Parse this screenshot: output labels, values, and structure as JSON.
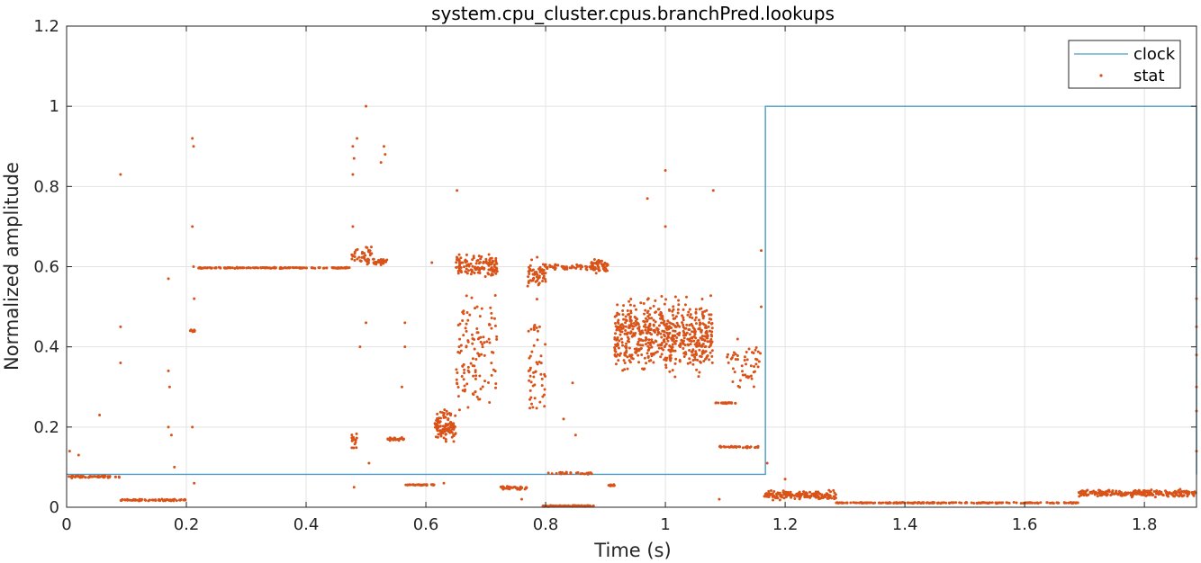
{
  "chart_data": {
    "type": "scatter",
    "title": "system.cpu_cluster.cpus.branchPred.lookups",
    "xlabel": "Time (s)",
    "ylabel": "Normalized amplitude",
    "xlim": [
      0,
      1.887
    ],
    "ylim": [
      0,
      1.2
    ],
    "grid": true,
    "legend_position": "top-right",
    "x_ticks": [
      0,
      0.2,
      0.4,
      0.6,
      0.8,
      1,
      1.2,
      1.4,
      1.6,
      1.8
    ],
    "x_tick_labels": [
      "0",
      "0.2",
      "0.4",
      "0.6",
      "0.8",
      "1",
      "1.2",
      "1.4",
      "1.6",
      "1.8"
    ],
    "y_ticks": [
      0,
      0.2,
      0.4,
      0.6,
      0.8,
      1,
      1.2
    ],
    "y_tick_labels": [
      "0",
      "0.2",
      "0.4",
      "0.6",
      "0.8",
      "1",
      "1.2"
    ],
    "colors": {
      "clock": "#4a9cc4",
      "stat": "#d95319",
      "grid": "#e3e3e3",
      "axis": "#262626"
    },
    "series": [
      {
        "name": "clock",
        "kind": "line",
        "x": [
          0,
          1.167,
          1.167,
          1.887,
          1.887
        ],
        "y": [
          0.082,
          0.082,
          1.0,
          1.0,
          0.082
        ]
      },
      {
        "name": "stat",
        "kind": "scatter",
        "segments": [
          {
            "x": [
              0.0,
              0.09
            ],
            "y": 0.076,
            "spread": 0.004,
            "n": 60
          },
          {
            "x": [
              0.09,
              0.2
            ],
            "y": 0.018,
            "spread": 0.003,
            "n": 70
          },
          {
            "x": [
              0.205,
              0.215
            ],
            "y": 0.44,
            "spread": 0.004,
            "n": 8
          },
          {
            "x": [
              0.22,
              0.475
            ],
            "y": 0.597,
            "spread": 0.002,
            "n": 150
          },
          {
            "x": [
              0.475,
              0.51
            ],
            "y": 0.63,
            "spread": 0.03,
            "n": 40
          },
          {
            "x": [
              0.5,
              0.535
            ],
            "y": 0.612,
            "spread": 0.01,
            "n": 40
          },
          {
            "x": [
              0.475,
              0.485
            ],
            "y": 0.17,
            "spread": 0.03,
            "n": 20
          },
          {
            "x": [
              0.535,
              0.565
            ],
            "y": 0.17,
            "spread": 0.005,
            "n": 25
          },
          {
            "x": [
              0.565,
              0.615
            ],
            "y": 0.056,
            "spread": 0.002,
            "n": 35
          },
          {
            "x": [
              0.615,
              0.65
            ],
            "y": 0.2,
            "spread": 0.05,
            "n": 110
          },
          {
            "x": [
              0.65,
              0.72
            ],
            "y": 0.6,
            "spread": 0.04,
            "n": 130
          },
          {
            "x": [
              0.65,
              0.72
            ],
            "y": 0.38,
            "spread": 0.22,
            "n": 120
          },
          {
            "x": [
              0.725,
              0.77
            ],
            "y": 0.048,
            "spread": 0.006,
            "n": 45
          },
          {
            "x": [
              0.77,
              0.8
            ],
            "y": 0.58,
            "spread": 0.05,
            "n": 60
          },
          {
            "x": [
              0.77,
              0.8
            ],
            "y": 0.35,
            "spread": 0.2,
            "n": 50
          },
          {
            "x": [
              0.795,
              0.88
            ],
            "y": 0.003,
            "spread": 0.002,
            "n": 90
          },
          {
            "x": [
              0.8,
              0.88
            ],
            "y": 0.6,
            "spread": 0.012,
            "n": 55
          },
          {
            "x": [
              0.8,
              0.88
            ],
            "y": 0.085,
            "spread": 0.004,
            "n": 25
          },
          {
            "x": [
              0.875,
              0.905
            ],
            "y": 0.6,
            "spread": 0.025,
            "n": 60
          },
          {
            "x": [
              0.905,
              0.915
            ],
            "y": 0.055,
            "spread": 0.004,
            "n": 12
          },
          {
            "x": [
              0.915,
              1.08
            ],
            "y": 0.43,
            "spread": 0.12,
            "n": 620
          },
          {
            "x": [
              1.08,
              1.12
            ],
            "y": 0.26,
            "spread": 0.003,
            "n": 25
          },
          {
            "x": [
              1.09,
              1.155
            ],
            "y": 0.15,
            "spread": 0.003,
            "n": 35
          },
          {
            "x": [
              1.1,
              1.16
            ],
            "y": 0.35,
            "spread": 0.08,
            "n": 50
          },
          {
            "x": [
              1.165,
              1.285
            ],
            "y": 0.03,
            "spread": 0.015,
            "n": 160
          },
          {
            "x": [
              1.285,
              1.69
            ],
            "y": 0.011,
            "spread": 0.002,
            "n": 200
          },
          {
            "x": [
              1.69,
              1.887
            ],
            "y": 0.035,
            "spread": 0.012,
            "n": 260
          }
        ],
        "outliers": [
          [
            0.09,
            0.83
          ],
          [
            0.09,
            0.45
          ],
          [
            0.09,
            0.36
          ],
          [
            0.055,
            0.23
          ],
          [
            0.005,
            0.14
          ],
          [
            0.02,
            0.13
          ],
          [
            0.17,
            0.57
          ],
          [
            0.17,
            0.34
          ],
          [
            0.172,
            0.3
          ],
          [
            0.17,
            0.2
          ],
          [
            0.18,
            0.1
          ],
          [
            0.175,
            0.18
          ],
          [
            0.21,
            0.92
          ],
          [
            0.212,
            0.9
          ],
          [
            0.21,
            0.7
          ],
          [
            0.212,
            0.6
          ],
          [
            0.213,
            0.52
          ],
          [
            0.21,
            0.2
          ],
          [
            0.213,
            0.06
          ],
          [
            0.478,
            0.9
          ],
          [
            0.48,
            0.87
          ],
          [
            0.478,
            0.83
          ],
          [
            0.478,
            0.7
          ],
          [
            0.49,
            0.4
          ],
          [
            0.5,
            0.46
          ],
          [
            0.5,
            1.0
          ],
          [
            0.485,
            0.92
          ],
          [
            0.53,
            0.9
          ],
          [
            0.532,
            0.88
          ],
          [
            0.525,
            0.86
          ],
          [
            0.48,
            0.05
          ],
          [
            0.505,
            0.11
          ],
          [
            0.565,
            0.46
          ],
          [
            0.565,
            0.4
          ],
          [
            0.56,
            0.3
          ],
          [
            0.61,
            0.61
          ],
          [
            0.652,
            0.79
          ],
          [
            0.63,
            0.06
          ],
          [
            0.76,
            0.02
          ],
          [
            0.79,
            0.45
          ],
          [
            0.83,
            0.22
          ],
          [
            0.85,
            0.18
          ],
          [
            0.845,
            0.31
          ],
          [
            0.97,
            0.77
          ],
          [
            1.0,
            0.84
          ],
          [
            1.08,
            0.79
          ],
          [
            1.0,
            0.7
          ],
          [
            1.09,
            0.02
          ],
          [
            1.16,
            0.64
          ],
          [
            1.16,
            0.5
          ],
          [
            1.17,
            0.11
          ],
          [
            1.2,
            0.07
          ],
          [
            1.887,
            0.62
          ],
          [
            1.887,
            0.52
          ],
          [
            1.887,
            0.45
          ],
          [
            1.887,
            0.38
          ],
          [
            1.887,
            0.3
          ],
          [
            1.887,
            0.24
          ],
          [
            1.887,
            0.14
          ]
        ]
      }
    ]
  }
}
